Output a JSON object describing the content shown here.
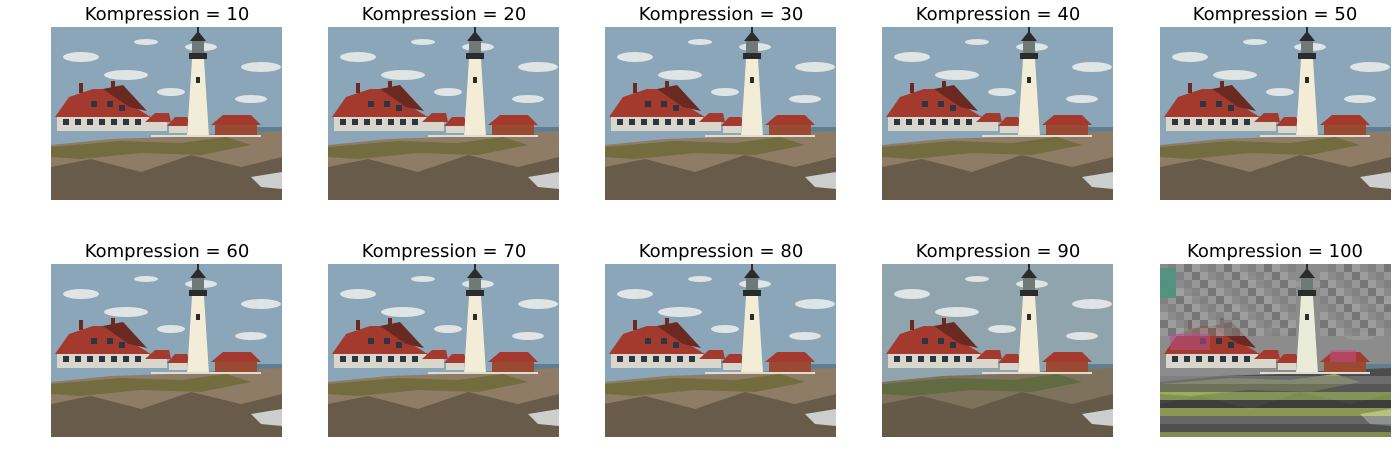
{
  "figure": {
    "panels": [
      {
        "title": "Kompression = 10",
        "value": 10
      },
      {
        "title": "Kompression = 20",
        "value": 20
      },
      {
        "title": "Kompression = 30",
        "value": 30
      },
      {
        "title": "Kompression = 40",
        "value": 40
      },
      {
        "title": "Kompression = 50",
        "value": 50
      },
      {
        "title": "Kompression = 60",
        "value": 60
      },
      {
        "title": "Kompression = 70",
        "value": 70
      },
      {
        "title": "Kompression = 80",
        "value": 80
      },
      {
        "title": "Kompression = 90",
        "value": 90
      },
      {
        "title": "Kompression = 100",
        "value": 100
      }
    ]
  }
}
